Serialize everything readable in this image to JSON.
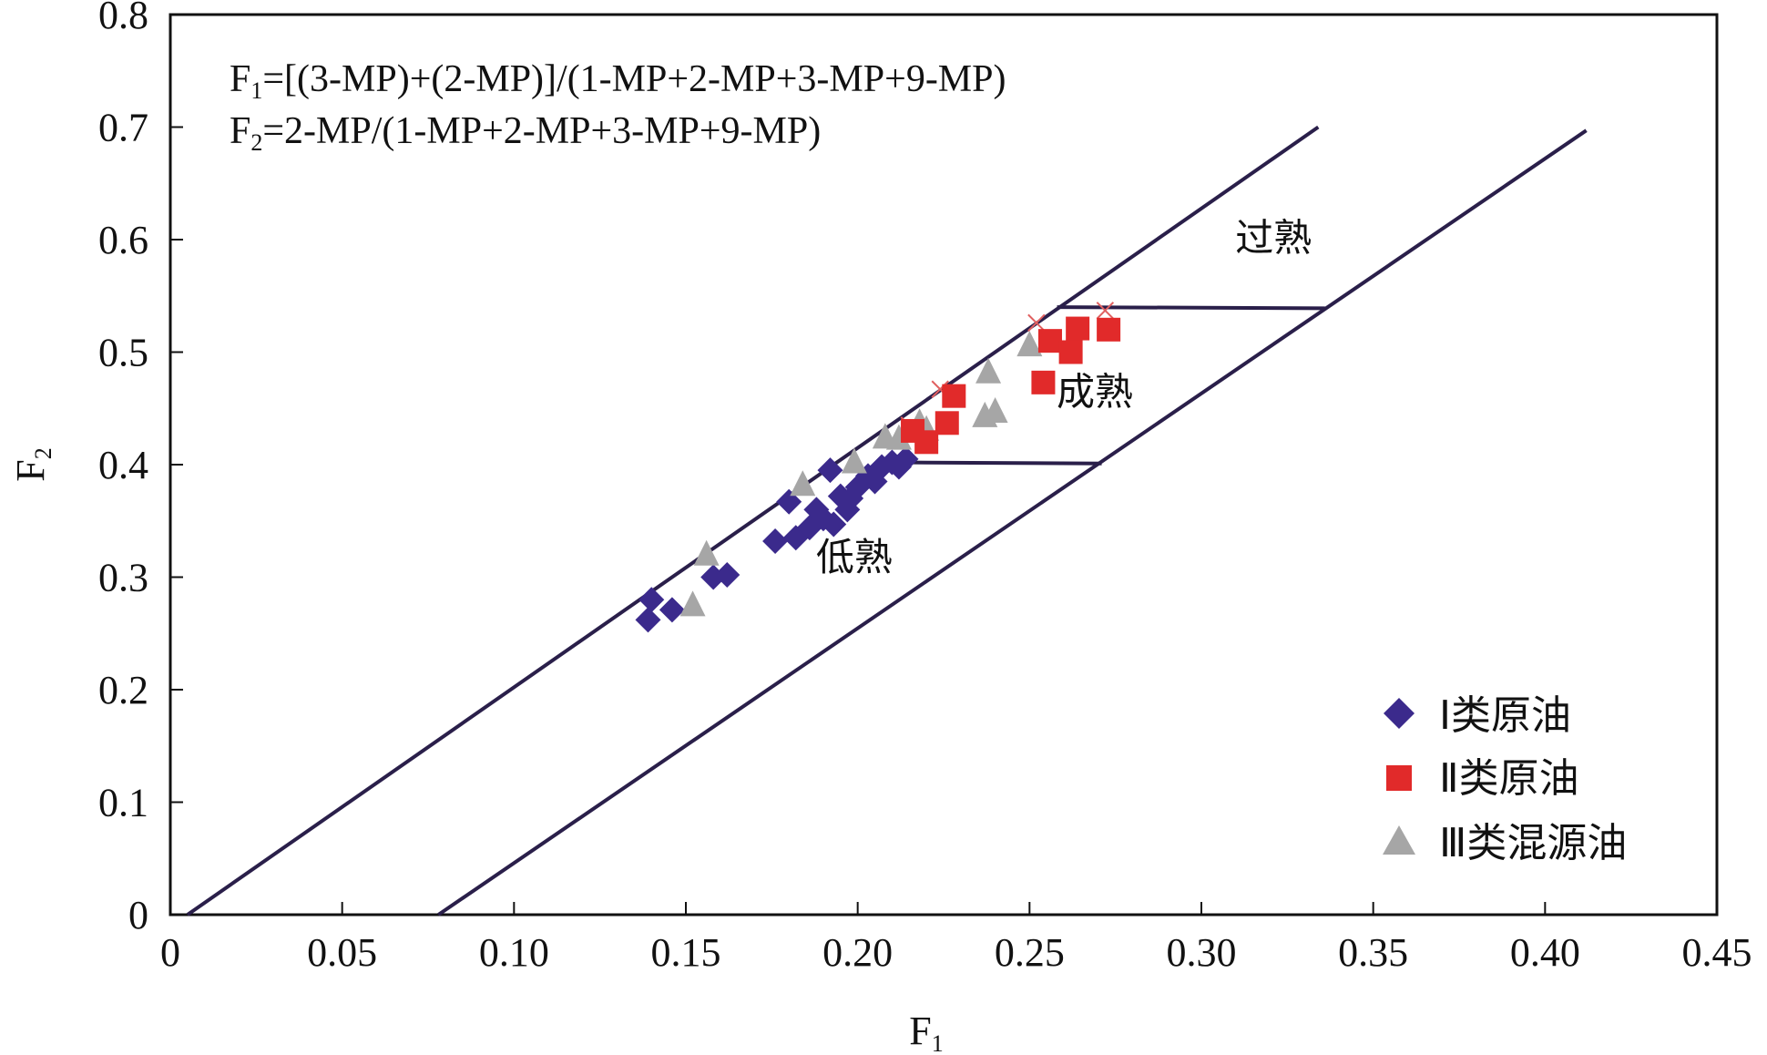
{
  "chart_data": {
    "type": "scatter",
    "xlabel": "F",
    "xlabel_sub": "1",
    "ylabel": "F",
    "ylabel_sub": "2",
    "xlim": [
      0,
      0.45
    ],
    "ylim": [
      0,
      0.8
    ],
    "x_ticks": [
      {
        "value": 0,
        "label": "0"
      },
      {
        "value": 0.05,
        "label": "0.05"
      },
      {
        "value": 0.1,
        "label": "0.10"
      },
      {
        "value": 0.15,
        "label": "0.15"
      },
      {
        "value": 0.2,
        "label": "0.20"
      },
      {
        "value": 0.25,
        "label": "0.25"
      },
      {
        "value": 0.3,
        "label": "0.30"
      },
      {
        "value": 0.35,
        "label": "0.35"
      },
      {
        "value": 0.4,
        "label": "0.40"
      },
      {
        "value": 0.45,
        "label": "0.45"
      }
    ],
    "y_ticks": [
      {
        "value": 0,
        "label": "0"
      },
      {
        "value": 0.1,
        "label": "0.1"
      },
      {
        "value": 0.2,
        "label": "0.2"
      },
      {
        "value": 0.3,
        "label": "0.3"
      },
      {
        "value": 0.4,
        "label": "0.4"
      },
      {
        "value": 0.5,
        "label": "0.5"
      },
      {
        "value": 0.6,
        "label": "0.6"
      },
      {
        "value": 0.7,
        "label": "0.7"
      },
      {
        "value": 0.8,
        "label": "0.8"
      }
    ],
    "grid": false,
    "legend_position": "bottom-right",
    "formulas": [
      {
        "main": "F",
        "sub": "1",
        "rest": "=[(3-MP)+(2-MP)]/(1-MP+2-MP+3-MP+9-MP)"
      },
      {
        "main": "F",
        "sub": "2",
        "rest": "=2-MP/(1-MP+2-MP+3-MP+9-MP)"
      }
    ],
    "zones": [
      {
        "label": "过熟",
        "x": 0.321,
        "y": 0.59
      },
      {
        "label": "成熟",
        "x": 0.269,
        "y": 0.453
      },
      {
        "label": "低熟",
        "x": 0.199,
        "y": 0.306
      }
    ],
    "boundary_lines": [
      {
        "name": "upper-boundary",
        "points": [
          [
            0.005,
            0
          ],
          [
            0.334,
            0.7
          ]
        ]
      },
      {
        "name": "lower-boundary",
        "points": [
          [
            0.078,
            0
          ],
          [
            0.412,
            0.697
          ]
        ]
      },
      {
        "name": "mature-top",
        "points": [
          [
            0.258,
            0.54
          ],
          [
            0.336,
            0.539
          ]
        ]
      },
      {
        "name": "mature-bottom",
        "points": [
          [
            0.212,
            0.402
          ],
          [
            0.271,
            0.401
          ]
        ]
      }
    ],
    "series": [
      {
        "name": "Ⅰ类原油",
        "marker": "diamond",
        "color": "#3b2a8c",
        "points": [
          [
            0.139,
            0.262
          ],
          [
            0.14,
            0.28
          ],
          [
            0.146,
            0.271
          ],
          [
            0.158,
            0.3
          ],
          [
            0.162,
            0.302
          ],
          [
            0.176,
            0.332
          ],
          [
            0.18,
            0.367
          ],
          [
            0.182,
            0.335
          ],
          [
            0.186,
            0.344
          ],
          [
            0.188,
            0.36
          ],
          [
            0.19,
            0.352
          ],
          [
            0.192,
            0.395
          ],
          [
            0.193,
            0.347
          ],
          [
            0.195,
            0.372
          ],
          [
            0.197,
            0.36
          ],
          [
            0.198,
            0.37
          ],
          [
            0.2,
            0.38
          ],
          [
            0.203,
            0.39
          ],
          [
            0.205,
            0.385
          ],
          [
            0.207,
            0.398
          ],
          [
            0.21,
            0.402
          ],
          [
            0.212,
            0.398
          ],
          [
            0.214,
            0.405
          ]
        ]
      },
      {
        "name": "Ⅱ类原油",
        "marker": "square",
        "color": "#e12a2a",
        "points": [
          [
            0.216,
            0.43
          ],
          [
            0.22,
            0.42
          ],
          [
            0.226,
            0.437
          ],
          [
            0.228,
            0.461
          ],
          [
            0.254,
            0.473
          ],
          [
            0.256,
            0.51
          ],
          [
            0.262,
            0.5
          ],
          [
            0.264,
            0.521
          ],
          [
            0.273,
            0.52
          ]
        ]
      },
      {
        "name": "Ⅲ类混源油",
        "marker": "triangle",
        "color": "#a6a6a6",
        "points": [
          [
            0.152,
            0.275
          ],
          [
            0.156,
            0.32
          ],
          [
            0.184,
            0.382
          ],
          [
            0.199,
            0.402
          ],
          [
            0.208,
            0.424
          ],
          [
            0.212,
            0.423
          ],
          [
            0.218,
            0.437
          ],
          [
            0.22,
            0.431
          ],
          [
            0.237,
            0.443
          ],
          [
            0.238,
            0.482
          ],
          [
            0.24,
            0.447
          ],
          [
            0.25,
            0.506
          ]
        ]
      }
    ],
    "x_marks": [
      [
        0.215,
        0.435
      ],
      [
        0.224,
        0.467
      ],
      [
        0.252,
        0.526
      ],
      [
        0.272,
        0.537
      ]
    ]
  }
}
